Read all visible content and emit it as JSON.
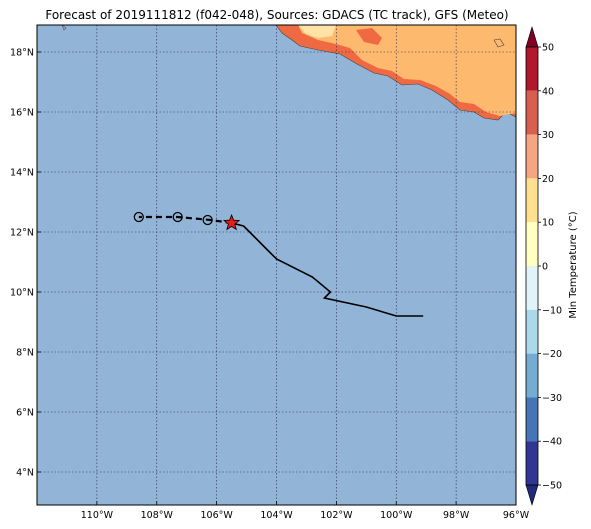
{
  "title": "Forecast of 2019111812 (f042-048), Sources: GDACS (TC track), GFS (Meteo)",
  "map": {
    "lon_range": [
      -112,
      -96
    ],
    "lat_range": [
      2.9,
      18.9
    ],
    "x_ticks": [
      "110°W",
      "108°W",
      "106°W",
      "104°W",
      "102°W",
      "100°W",
      "98°W",
      "96°W"
    ],
    "x_tick_values": [
      -110,
      -108,
      -106,
      -104,
      -102,
      -100,
      -98,
      -96
    ],
    "y_ticks": [
      "4°N",
      "6°N",
      "8°N",
      "10°N",
      "12°N",
      "14°N",
      "16°N",
      "18°N"
    ],
    "y_tick_values": [
      4,
      6,
      8,
      10,
      12,
      14,
      16,
      18
    ],
    "ocean_color": "#92b4d7",
    "grid": true
  },
  "track": {
    "observed": [
      [
        -99.1,
        9.2
      ],
      [
        -100.0,
        9.2
      ],
      [
        -101.0,
        9.5
      ],
      [
        -102.4,
        9.8
      ],
      [
        -102.2,
        10.0
      ],
      [
        -102.8,
        10.5
      ],
      [
        -104.0,
        11.1
      ],
      [
        -104.5,
        11.6
      ],
      [
        -104.8,
        11.9
      ],
      [
        -105.1,
        12.2
      ],
      [
        -105.5,
        12.3
      ]
    ],
    "forecast": [
      [
        -105.5,
        12.3
      ],
      [
        -106.2,
        12.4
      ],
      [
        -107.3,
        12.5
      ],
      [
        -108.6,
        12.5
      ]
    ],
    "forecast_points": [
      [
        -106.3,
        12.4
      ],
      [
        -107.3,
        12.5
      ],
      [
        -108.6,
        12.5
      ]
    ],
    "current_position": [
      -105.5,
      12.3
    ],
    "line_color": "#000000",
    "star_color": "#e0201b"
  },
  "colorbar": {
    "label": "Min Temperature (°C)",
    "ticks": [
      "50",
      "40",
      "30",
      "20",
      "10",
      "0",
      "−10",
      "−20",
      "−30",
      "−40",
      "−50"
    ],
    "tick_values": [
      50,
      40,
      30,
      20,
      10,
      0,
      -10,
      -20,
      -30,
      -40,
      -50
    ],
    "colors_top_to_bottom": [
      "#800026",
      "#b2182b",
      "#d6604d",
      "#f4a582",
      "#fee090",
      "#ffffbf",
      "#e0f3f8",
      "#abd9e9",
      "#74add1",
      "#4575b4",
      "#313695",
      "#1f2a7a"
    ]
  }
}
